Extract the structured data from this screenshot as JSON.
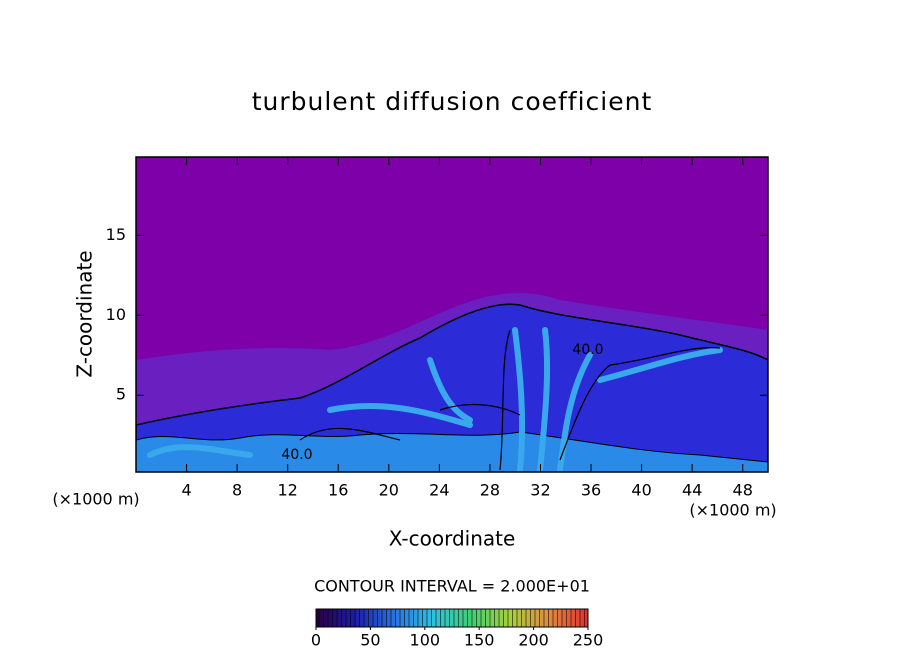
{
  "chart_data": {
    "type": "heatmap",
    "title": "turbulent diffusion coefficient",
    "x_label": "X-coordinate",
    "y_label": "Z-coordinate",
    "x_unit": "(×1000 m)",
    "xlim": [
      0,
      50
    ],
    "xticks": [
      4,
      8,
      12,
      16,
      20,
      24,
      28,
      32,
      36,
      40,
      44,
      48
    ],
    "ylim": [
      0.2,
      19.9
    ],
    "yticks": [
      5,
      10,
      15
    ],
    "background_color": "#7d00a8",
    "annotations": [
      "40.0",
      "40.0"
    ],
    "colorbar": {
      "label": "CONTOUR INTERVAL = 2.000E+01",
      "lim": [
        0,
        250
      ],
      "ticks": [
        0,
        50,
        100,
        150,
        200,
        250
      ],
      "colors": [
        "#2a0040",
        "#1c1ca8",
        "#2a70e0",
        "#30c0e0",
        "#40d070",
        "#a8d040",
        "#e08a40",
        "#e03030"
      ]
    }
  }
}
